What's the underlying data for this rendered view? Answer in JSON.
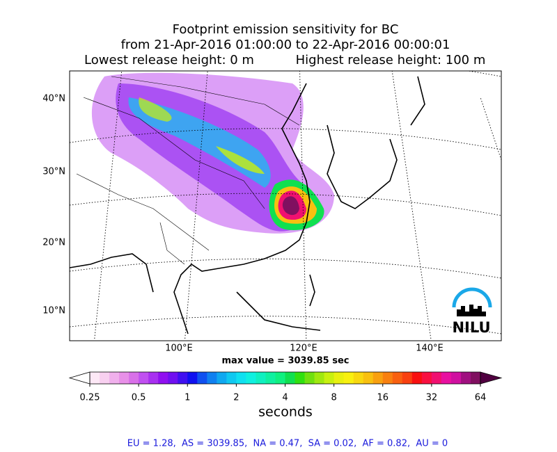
{
  "title_lines": [
    "Footprint emission sensitivity for BC",
    "from 21-Apr-2016 01:00:00 to 22-Apr-2016 00:00:01"
  ],
  "release_heights": [
    "Lowest release height: 0 m",
    "Highest release height: 100 m"
  ],
  "map": {
    "lat_labels": [
      "40°N",
      "30°N",
      "20°N",
      "10°N"
    ],
    "lon_labels": [
      "100°E",
      "120°E",
      "140°E"
    ],
    "max_value_text": "max value = 3039.85 sec",
    "logo": "NILU"
  },
  "colorbar": {
    "scale": "log",
    "ticks": [
      0.25,
      0.5,
      1,
      2,
      4,
      8,
      16,
      32,
      64
    ],
    "label": "seconds",
    "under_color": "#ffffff",
    "over_color": "#500040",
    "colors": [
      "#fde8f6",
      "#f8d0f0",
      "#f0b0ec",
      "#e890e8",
      "#d870e8",
      "#c050f0",
      "#a830f0",
      "#9010f0",
      "#7010f0",
      "#4010f0",
      "#1010f0",
      "#1050f0",
      "#1080f0",
      "#10a8f0",
      "#10c8f0",
      "#10e0f0",
      "#10f0e0",
      "#10f0c0",
      "#10f0a0",
      "#10f080",
      "#10e050",
      "#30e010",
      "#70e010",
      "#a0e810",
      "#c8f010",
      "#e8f010",
      "#f8f010",
      "#f8d810",
      "#f8c010",
      "#f8a010",
      "#f88010",
      "#f86010",
      "#f84010",
      "#f81010",
      "#f81040",
      "#f01070",
      "#e810a0",
      "#d010a0",
      "#a01080",
      "#801060"
    ]
  },
  "stats": "EU = 1.28,  AS = 3039.85,  NA = 0.47,  SA = 0.02,  AF = 0.82,  AU = 0"
}
